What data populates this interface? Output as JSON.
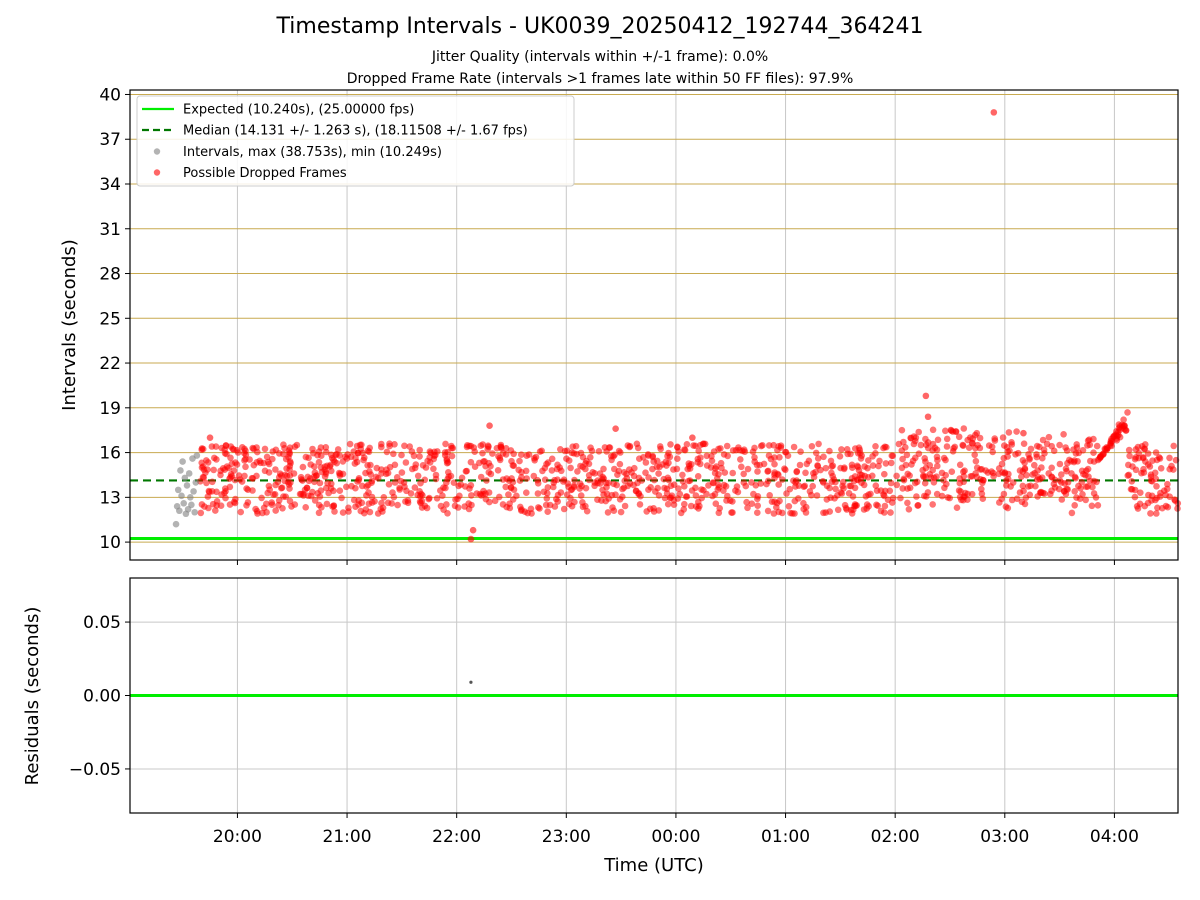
{
  "title": "Timestamp Intervals - UK0039_20250412_192744_364241",
  "subtitle_1": "Jitter Quality (intervals within +/-1 frame): 0.0%",
  "subtitle_2": "Dropped Frame Rate (intervals >1 frames late within 50 FF files): 97.9%",
  "colors": {
    "expected": "#00ee00",
    "median": "#007700",
    "intervals": "#808080",
    "dropped": "#ff0000",
    "hgrid_top": "#c8aa50",
    "vgrid": "#c8c8c8"
  },
  "chart_data": [
    {
      "type": "scatter",
      "xlabel": "",
      "ylabel": "Intervals (seconds)",
      "x_unit": "hours UTC (continuous, 24+ after midnight)",
      "xlim": [
        19.02,
        28.58
      ],
      "ylim": [
        8.8,
        40.3
      ],
      "y_ticks": [
        10,
        13,
        16,
        19,
        22,
        25,
        28,
        31,
        34,
        37,
        40
      ],
      "x_ticks": [
        20,
        21,
        22,
        23,
        24,
        25,
        26,
        27,
        28
      ],
      "grid": true,
      "legend_placement": "top-left",
      "legend": [
        "Expected (10.240s), (25.00000 fps)",
        "Median (14.131 +/- 1.263 s), (18.11508 +/- 1.67 fps)",
        "Intervals, max (38.753s), min (10.249s)",
        "Possible Dropped Frames"
      ],
      "expected_line": 10.24,
      "median_line": 14.131,
      "intervals_points": [
        [
          19.44,
          11.2
        ],
        [
          19.45,
          12.4
        ],
        [
          19.46,
          13.5
        ],
        [
          19.47,
          12.1
        ],
        [
          19.48,
          14.8
        ],
        [
          19.49,
          13.1
        ],
        [
          19.5,
          15.4
        ],
        [
          19.51,
          12.6
        ],
        [
          19.52,
          14.3
        ],
        [
          19.53,
          11.9
        ],
        [
          19.54,
          13.8
        ],
        [
          19.55,
          12.2
        ],
        [
          19.56,
          14.6
        ],
        [
          19.57,
          13.0
        ],
        [
          19.58,
          12.5
        ],
        [
          19.59,
          15.6
        ],
        [
          19.6,
          13.4
        ],
        [
          19.61,
          12.0
        ],
        [
          19.62,
          14.0
        ],
        [
          19.63,
          15.8
        ]
      ],
      "dropped_outliers": [
        [
          26.9,
          38.8
        ],
        [
          26.28,
          19.8
        ],
        [
          22.13,
          10.2
        ],
        [
          22.15,
          10.8
        ],
        [
          22.3,
          17.8
        ],
        [
          23.45,
          17.6
        ],
        [
          26.3,
          18.4
        ],
        [
          27.17,
          17.3
        ],
        [
          24.15,
          17.0
        ],
        [
          19.75,
          17.0
        ]
      ],
      "dropped_band": {
        "x_range": [
          19.66,
          28.58
        ],
        "y_range": [
          11.9,
          16.6
        ],
        "spike": {
          "x_range": [
            27.85,
            28.12
          ],
          "y_peak": 18.9
        },
        "count": 1500
      }
    },
    {
      "type": "scatter",
      "xlabel": "Time (UTC)",
      "ylabel": "Residuals (seconds)",
      "xlim": [
        19.02,
        28.58
      ],
      "ylim": [
        -0.08,
        0.08
      ],
      "y_ticks": [
        -0.05,
        0.0,
        0.05
      ],
      "y_tick_labels": [
        "−0.05",
        "0.00",
        "0.05"
      ],
      "x_ticks": [
        20,
        21,
        22,
        23,
        24,
        25,
        26,
        27,
        28
      ],
      "x_tick_labels": [
        "20:00",
        "21:00",
        "22:00",
        "23:00",
        "00:00",
        "01:00",
        "02:00",
        "03:00",
        "04:00"
      ],
      "grid": true,
      "zero_line": 0.0,
      "points": [
        [
          22.13,
          0.009
        ]
      ]
    }
  ]
}
